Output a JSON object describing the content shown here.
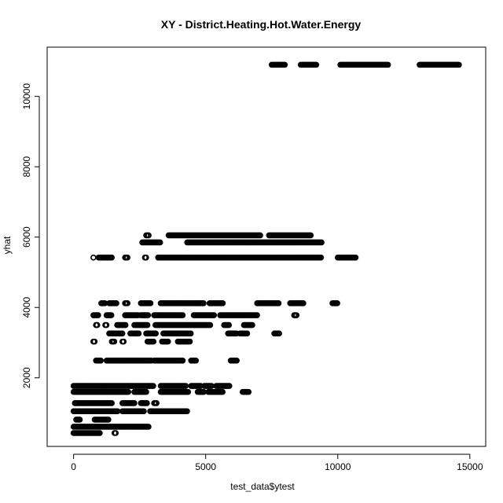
{
  "chart_data": {
    "type": "scatter",
    "title": "XY - District.Heating.Hot.Water.Energy",
    "xlabel": "test_data$ytest",
    "ylabel": "yhat",
    "xlim": [
      -1000,
      15600
    ],
    "ylim": [
      50,
      11400
    ],
    "xticks": [
      0,
      5000,
      10000,
      15000
    ],
    "yticks": [
      2000,
      4000,
      6000,
      8000,
      10000
    ],
    "grid": false,
    "marker": "open-circle",
    "color": "#000000",
    "bands": [
      {
        "y": 10900,
        "segments": [
          [
            7500,
            8000
          ],
          [
            8600,
            9200
          ],
          [
            10100,
            11900
          ],
          [
            13100,
            14600
          ]
        ]
      },
      {
        "y": 6050,
        "segments": [
          [
            2750,
            2850
          ],
          [
            3600,
            7100
          ],
          [
            7400,
            9000
          ]
        ]
      },
      {
        "y": 5850,
        "segments": [
          [
            2600,
            3300
          ],
          [
            4300,
            9400
          ]
        ]
      },
      {
        "y": 5420,
        "segments": [
          [
            750,
            750
          ],
          [
            950,
            1450
          ],
          [
            1950,
            2050
          ],
          [
            2700,
            2750
          ],
          [
            3200,
            9400
          ],
          [
            10000,
            10700
          ]
        ]
      },
      {
        "y": 4120,
        "segments": [
          [
            1050,
            1200
          ],
          [
            1350,
            1650
          ],
          [
            1950,
            2050
          ],
          [
            2550,
            2950
          ],
          [
            3300,
            4950
          ],
          [
            5150,
            5650
          ],
          [
            6950,
            7800
          ],
          [
            8200,
            8700
          ],
          [
            9800,
            10000
          ]
        ]
      },
      {
        "y": 3780,
        "segments": [
          [
            750,
            950
          ],
          [
            1250,
            1450
          ],
          [
            1950,
            2450
          ],
          [
            2550,
            2850
          ],
          [
            3050,
            4150
          ],
          [
            4550,
            5350
          ],
          [
            5550,
            6950
          ],
          [
            8350,
            8450
          ]
        ]
      },
      {
        "y": 3500,
        "segments": [
          [
            850,
            900
          ],
          [
            1200,
            1250
          ],
          [
            1650,
            2000
          ],
          [
            2300,
            2800
          ],
          [
            3100,
            5200
          ],
          [
            5700,
            5900
          ],
          [
            6450,
            6800
          ]
        ]
      },
      {
        "y": 3260,
        "segments": [
          [
            1350,
            1850
          ],
          [
            2150,
            2500
          ],
          [
            2750,
            3150
          ],
          [
            3400,
            4450
          ],
          [
            5850,
            6200
          ],
          [
            6300,
            6600
          ],
          [
            7600,
            7800
          ]
        ]
      },
      {
        "y": 3030,
        "segments": [
          [
            750,
            800
          ],
          [
            1450,
            1550
          ],
          [
            1850,
            1900
          ],
          [
            2800,
            3050
          ],
          [
            3350,
            3600
          ],
          [
            3950,
            4400
          ]
        ]
      },
      {
        "y": 2490,
        "segments": [
          [
            850,
            1050
          ],
          [
            1250,
            1950
          ],
          [
            1950,
            2950
          ],
          [
            3050,
            4150
          ],
          [
            4450,
            4650
          ],
          [
            5950,
            6200
          ]
        ]
      },
      {
        "y": 1770,
        "segments": [
          [
            0,
            3050
          ],
          [
            3300,
            4250
          ],
          [
            4450,
            4850
          ],
          [
            4950,
            5250
          ],
          [
            5400,
            5900
          ]
        ]
      },
      {
        "y": 1600,
        "segments": [
          [
            0,
            2100
          ],
          [
            2300,
            2750
          ],
          [
            3300,
            4350
          ],
          [
            4700,
            4950
          ],
          [
            5100,
            5650
          ],
          [
            6400,
            6650
          ]
        ]
      },
      {
        "y": 1280,
        "segments": [
          [
            50,
            1450
          ],
          [
            1850,
            2300
          ],
          [
            2550,
            2800
          ],
          [
            3050,
            3150
          ]
        ]
      },
      {
        "y": 1050,
        "segments": [
          [
            0,
            1700
          ],
          [
            1850,
            2700
          ],
          [
            2900,
            4300
          ]
        ]
      },
      {
        "y": 810,
        "segments": [
          [
            100,
            250
          ],
          [
            800,
            950
          ],
          [
            1000,
            1350
          ]
        ]
      },
      {
        "y": 610,
        "segments": [
          [
            0,
            2850
          ]
        ]
      },
      {
        "y": 430,
        "segments": [
          [
            0,
            1000
          ],
          [
            1550,
            1600
          ]
        ]
      }
    ]
  }
}
